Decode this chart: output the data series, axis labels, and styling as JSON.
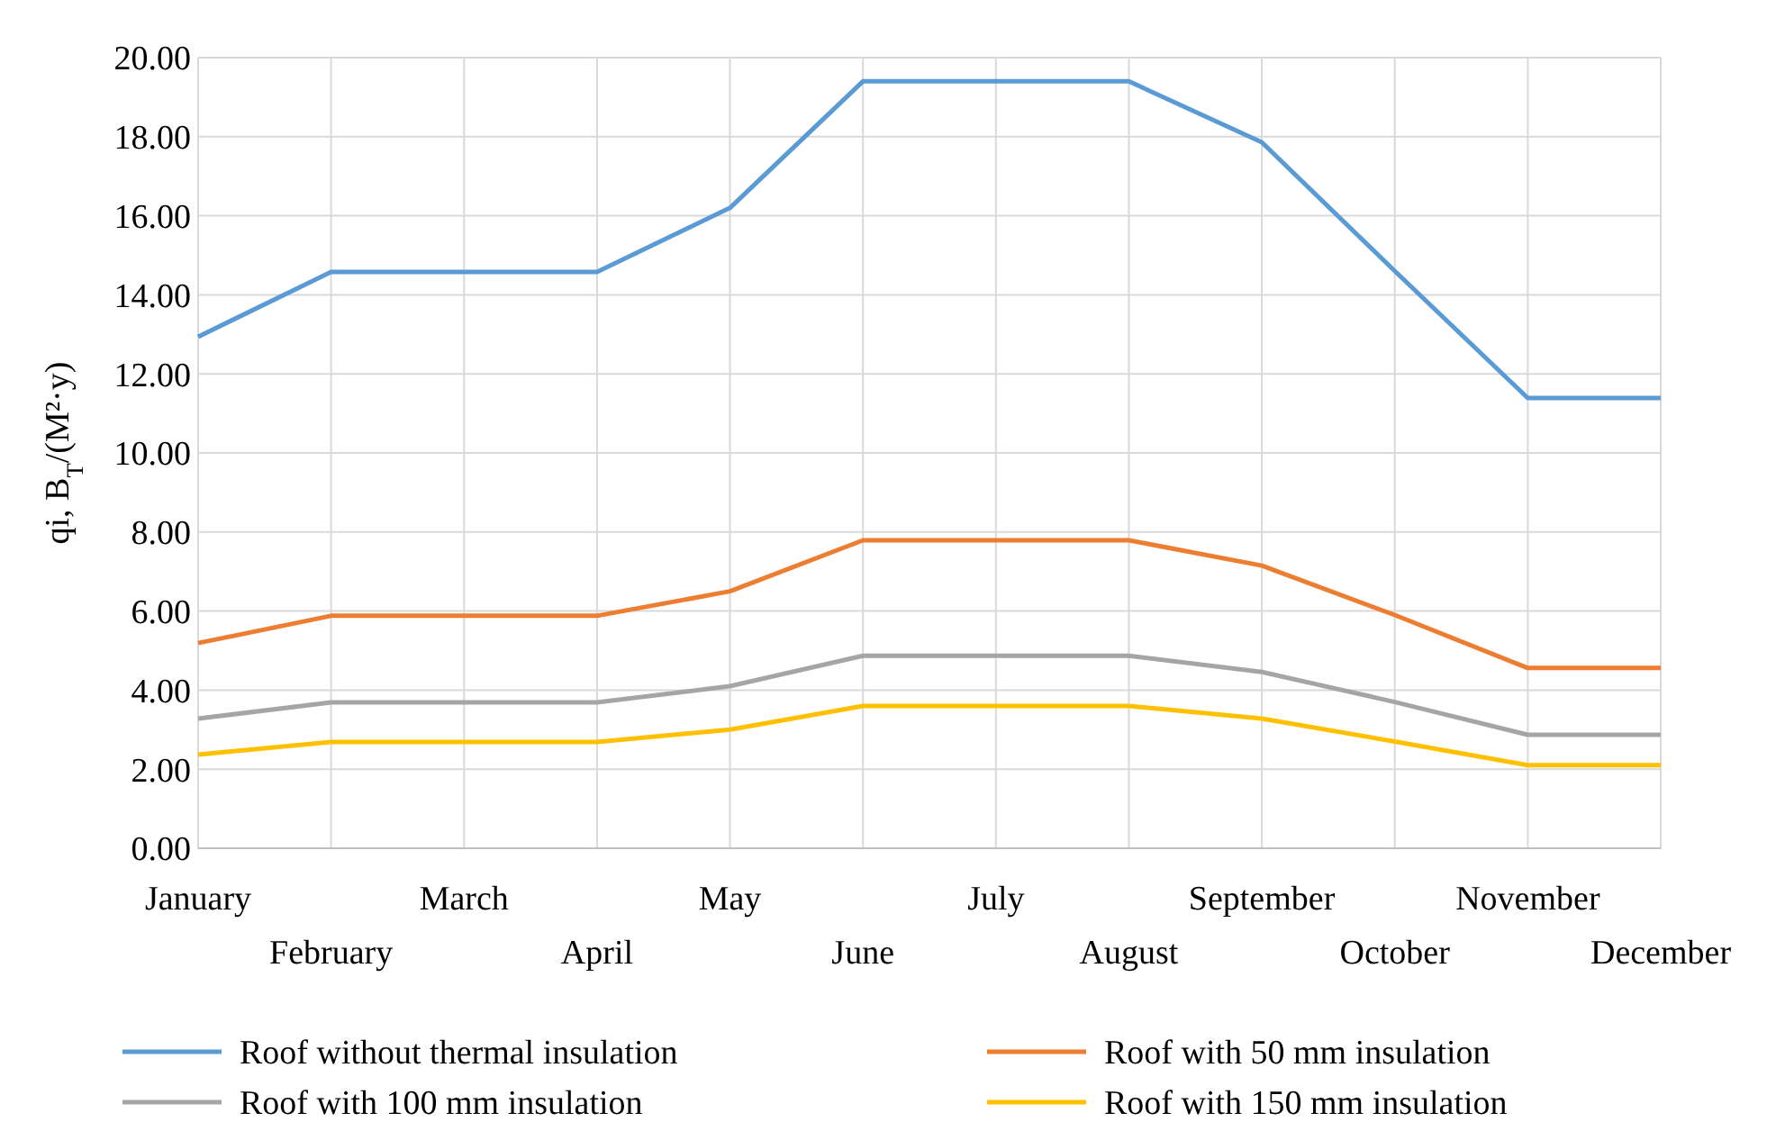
{
  "chart_data": {
    "type": "line",
    "ylabel": "qi, B$_{T}$/(M²·y)",
    "categories": [
      "January",
      "February",
      "March",
      "April",
      "May",
      "June",
      "July",
      "August",
      "September",
      "October",
      "November",
      "December"
    ],
    "series": [
      {
        "name": "Roof without thermal insulation",
        "color": "#5b9bd5",
        "values": [
          12.94,
          14.58,
          14.58,
          14.58,
          16.2,
          19.4,
          19.4,
          19.4,
          17.86,
          14.6,
          11.39,
          11.39
        ]
      },
      {
        "name": "Roof with 50 mm insulation",
        "color": "#ed7d31",
        "values": [
          5.19,
          5.88,
          5.88,
          5.88,
          6.5,
          7.79,
          7.79,
          7.79,
          7.15,
          5.9,
          4.56,
          4.56
        ]
      },
      {
        "name": "Roof with 100 mm insulation",
        "color": "#a5a5a5",
        "values": [
          3.28,
          3.69,
          3.69,
          3.69,
          4.1,
          4.87,
          4.87,
          4.87,
          4.46,
          3.7,
          2.87,
          2.87
        ]
      },
      {
        "name": "Roof with 150 mm insulation",
        "color": "#ffc000",
        "values": [
          2.37,
          2.69,
          2.69,
          2.69,
          3.0,
          3.6,
          3.6,
          3.6,
          3.28,
          2.7,
          2.1,
          2.1
        ]
      }
    ],
    "ylim": [
      0,
      20
    ],
    "yticks": [
      {
        "value": 0,
        "label": "0.00"
      },
      {
        "value": 2,
        "label": "2.00"
      },
      {
        "value": 4,
        "label": "4.00"
      },
      {
        "value": 6,
        "label": "6.00"
      },
      {
        "value": 8,
        "label": "8.00"
      },
      {
        "value": 10,
        "label": "10.00"
      },
      {
        "value": 12,
        "label": "12.00"
      },
      {
        "value": 14,
        "label": "14.00"
      },
      {
        "value": 16,
        "label": "16.00"
      },
      {
        "value": 18,
        "label": "18.00"
      },
      {
        "value": 20,
        "label": "20.00"
      }
    ],
    "grid": true,
    "legend": "bottom",
    "marker": "none",
    "line_style": "solid"
  }
}
